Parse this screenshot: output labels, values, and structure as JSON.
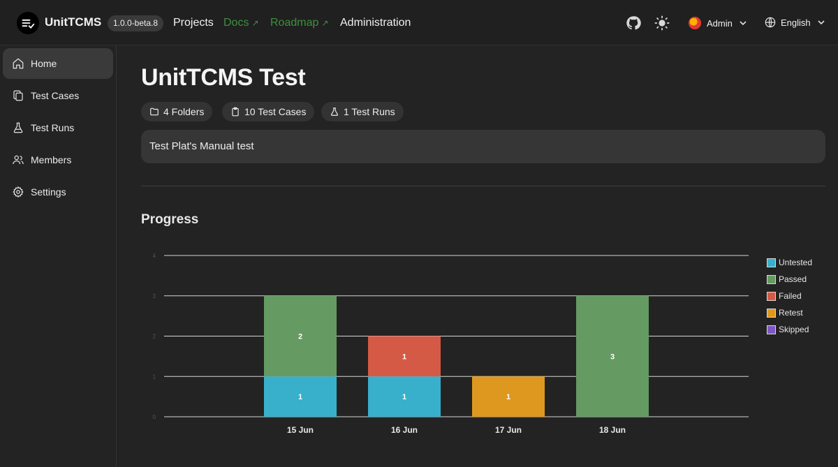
{
  "header": {
    "app_name": "UnitTCMS",
    "version": "1.0.0-beta.8",
    "nav": {
      "projects": "Projects",
      "docs": "Docs",
      "roadmap": "Roadmap",
      "administration": "Administration"
    },
    "user": "Admin",
    "language": "English"
  },
  "sidebar": {
    "items": [
      {
        "label": "Home",
        "icon": "home-icon",
        "active": true
      },
      {
        "label": "Test Cases",
        "icon": "copy-icon",
        "active": false
      },
      {
        "label": "Test Runs",
        "icon": "flask-icon",
        "active": false
      },
      {
        "label": "Members",
        "icon": "users-icon",
        "active": false
      },
      {
        "label": "Settings",
        "icon": "gear-icon",
        "active": false
      }
    ]
  },
  "project": {
    "title": "UnitTCMS Test",
    "chips": {
      "folders": "4 Folders",
      "cases": "10 Test Cases",
      "runs": "1 Test Runs"
    },
    "description": "Test Plat's Manual test"
  },
  "progress": {
    "title": "Progress"
  },
  "colors": {
    "untested": "#38b0cc",
    "passed": "#659a62",
    "failed": "#d55a45",
    "retest": "#de981f",
    "skipped": "#7e57c2",
    "accent_link": "#3f8f3f"
  },
  "chart_data": {
    "type": "bar",
    "stacked": true,
    "categories": [
      "15 Jun",
      "16 Jun",
      "17 Jun",
      "18 Jun"
    ],
    "series": [
      {
        "name": "Untested",
        "values": [
          1,
          1,
          0,
          0
        ]
      },
      {
        "name": "Passed",
        "values": [
          2,
          0,
          0,
          3
        ]
      },
      {
        "name": "Failed",
        "values": [
          0,
          1,
          0,
          0
        ]
      },
      {
        "name": "Retest",
        "values": [
          0,
          0,
          1,
          0
        ]
      },
      {
        "name": "Skipped",
        "values": [
          0,
          0,
          0,
          0
        ]
      }
    ],
    "yticks": [
      0,
      1,
      2,
      3,
      4
    ],
    "ylim": [
      0,
      4
    ],
    "grid": true,
    "legend": "right"
  }
}
